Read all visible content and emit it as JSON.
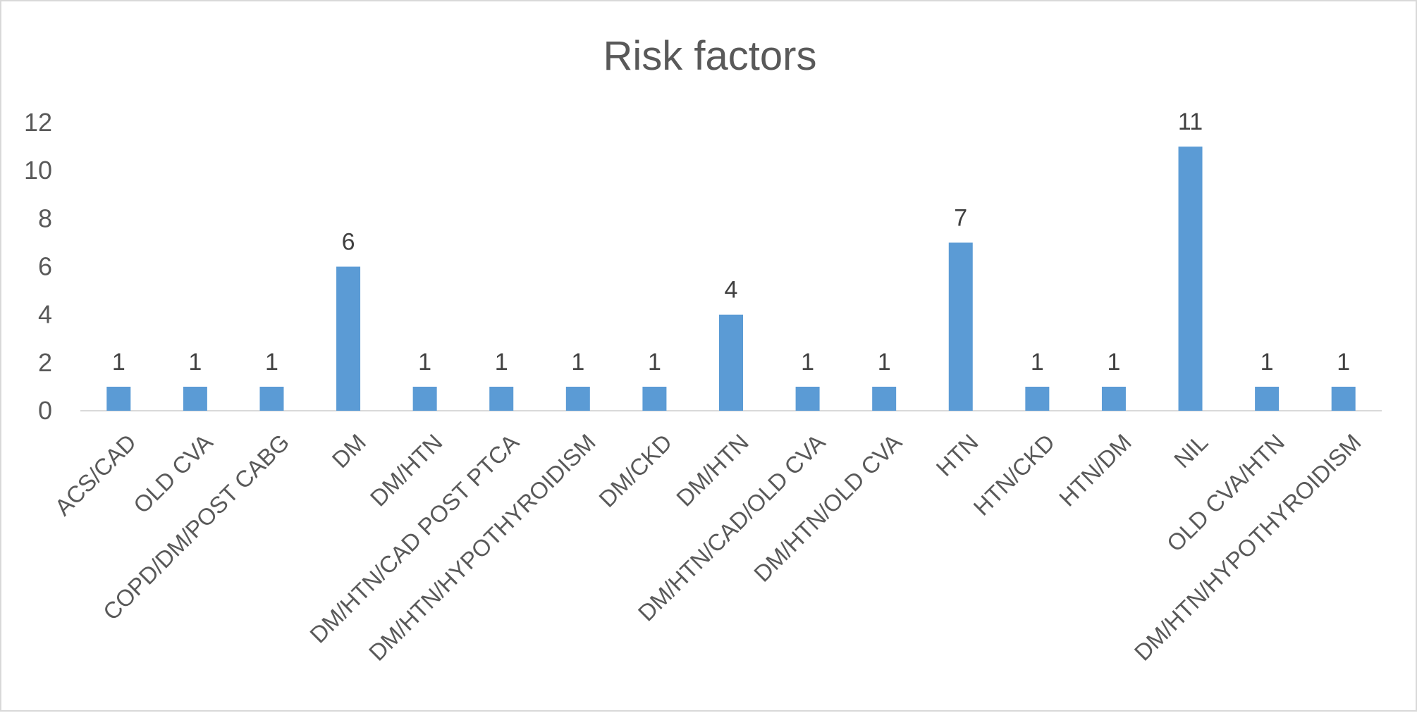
{
  "chart_data": {
    "type": "bar",
    "title": "Risk factors",
    "xlabel": "",
    "ylabel": "",
    "categories": [
      "ACS/CAD",
      "OLD CVA",
      "COPD/DM/POST CABG",
      "DM",
      "DM/HTN",
      "DM/HTN/CAD POST PTCA",
      "DM/HTN/HYPOTHYROIDISM",
      "DM/CKD",
      "DM/HTN",
      "DM/HTN/CAD/OLD CVA",
      "DM/HTN/OLD CVA",
      "HTN",
      "HTN/CKD",
      "HTN/DM",
      "NIL",
      "OLD CVA/HTN",
      "DM/HTN/HYPOTHYROIDISM"
    ],
    "values": [
      1,
      1,
      1,
      6,
      1,
      1,
      1,
      1,
      4,
      1,
      1,
      7,
      1,
      1,
      11,
      1,
      1
    ],
    "ylim": [
      0,
      12
    ],
    "yticks": [
      0,
      2,
      4,
      6,
      8,
      10,
      12
    ],
    "data_labels": true,
    "grid": false,
    "legend": "none",
    "bar_color": "#5B9BD5"
  }
}
